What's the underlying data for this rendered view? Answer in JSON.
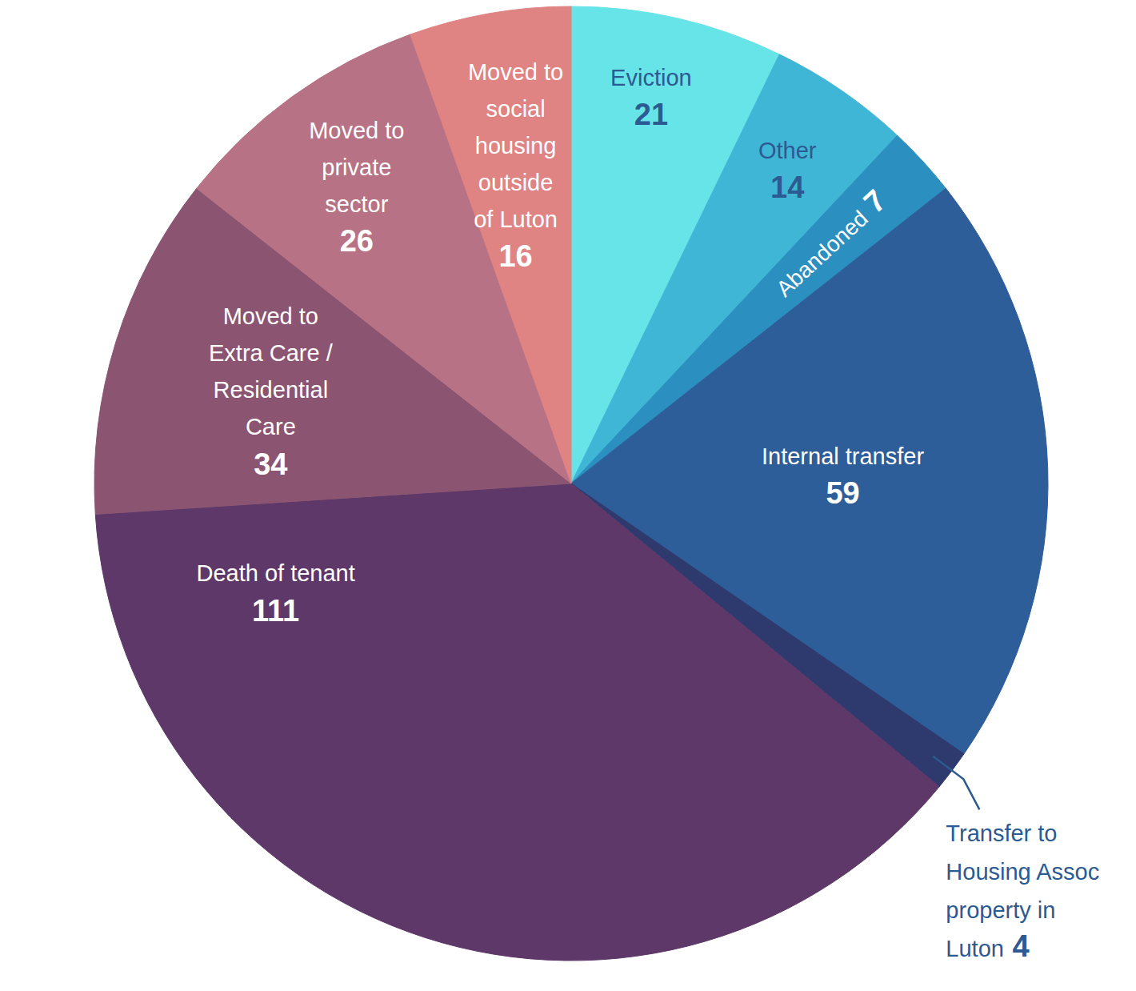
{
  "chart_data": {
    "type": "pie",
    "categories": [
      "Eviction",
      "Other",
      "Abandoned",
      "Internal transfer",
      "Transfer to Housing Assoc property in Luton",
      "Death of tenant",
      "Moved to Extra Care / Residential Care",
      "Moved to private sector",
      "Moved to social housing outside of Luton"
    ],
    "values": [
      21,
      14,
      7,
      59,
      4,
      111,
      34,
      26,
      16
    ],
    "colors": [
      "#67e4e8",
      "#40b6d6",
      "#2b8fbf",
      "#2e5e99",
      "#2e3a6e",
      "#5d3868",
      "#8b5572",
      "#b87285",
      "#e08383"
    ],
    "data_labels": true
  }
}
